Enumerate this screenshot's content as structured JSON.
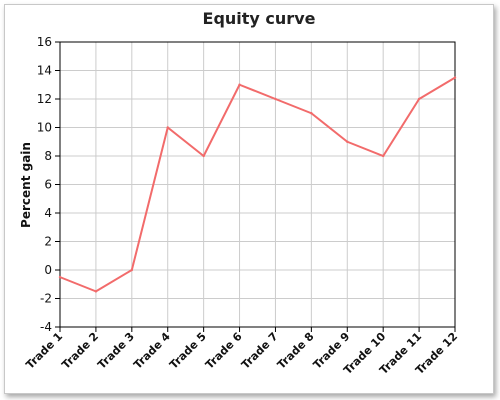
{
  "chart_data": {
    "type": "line",
    "title": "Equity curve",
    "xlabel": "",
    "ylabel": "Percent gain",
    "categories": [
      "Trade 1",
      "Trade 2",
      "Trade 3",
      "Trade 4",
      "Trade 5",
      "Trade 6",
      "Trade 7",
      "Trade 8",
      "Trade 9",
      "Trade 10",
      "Trade 11",
      "Trade 12"
    ],
    "series": [
      {
        "values": [
          -0.5,
          -1.5,
          0,
          10,
          8,
          13,
          12,
          11,
          9,
          8,
          12,
          13.5
        ],
        "color": "#f26b6b"
      }
    ],
    "ylim": [
      -4,
      16
    ],
    "yticks": [
      -4,
      -2,
      0,
      2,
      4,
      6,
      8,
      10,
      12,
      14,
      16
    ],
    "grid": true,
    "colors": {
      "grid": "#cccccc",
      "axis": "#000000",
      "line": "#f26b6b"
    }
  }
}
